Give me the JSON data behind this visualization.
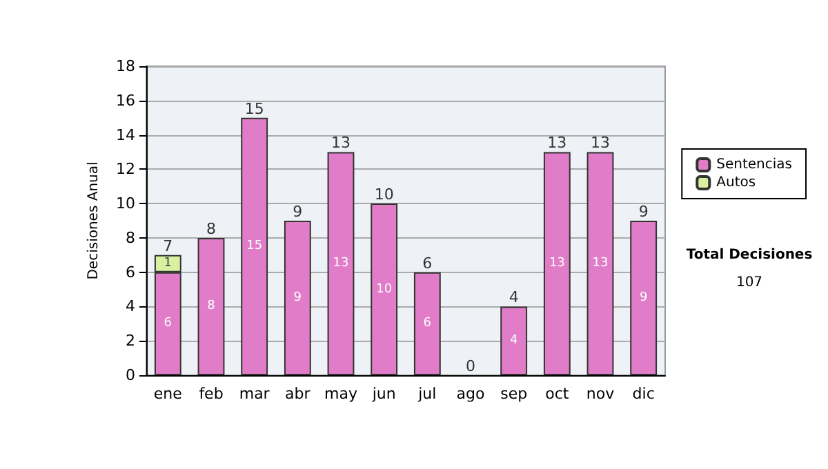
{
  "chart_data": {
    "type": "bar",
    "stacked": true,
    "ylabel": "Decisiones Anual",
    "categories": [
      "ene",
      "feb",
      "mar",
      "abr",
      "may",
      "jun",
      "jul",
      "ago",
      "sep",
      "oct",
      "nov",
      "dic"
    ],
    "series": [
      {
        "name": "Sentencias",
        "color": "#e07cc8",
        "values": [
          6,
          8,
          15,
          9,
          13,
          10,
          6,
          0,
          4,
          13,
          13,
          9
        ],
        "value_labels": [
          "6",
          "8",
          "15",
          "9",
          "13",
          "10",
          "6",
          null,
          "4",
          "13",
          "13",
          "9"
        ]
      },
      {
        "name": "Autos",
        "color": "#d8f0a0",
        "values": [
          1,
          null,
          null,
          null,
          null,
          null,
          null,
          null,
          null,
          null,
          null,
          null
        ],
        "value_labels": [
          "1",
          null,
          null,
          null,
          null,
          null,
          null,
          null,
          null,
          null,
          null,
          null
        ]
      }
    ],
    "totals": [
      "7",
      "8",
      "15",
      "9",
      "13",
      "10",
      "6",
      "0",
      "4",
      "13",
      "13",
      "9"
    ],
    "ylim": [
      0,
      18
    ],
    "yticks": [
      0,
      2,
      4,
      6,
      8,
      10,
      12,
      14,
      16,
      18
    ],
    "grid": "y",
    "legend": "right",
    "annotations": [
      "Total Decisiones",
      "107"
    ]
  }
}
